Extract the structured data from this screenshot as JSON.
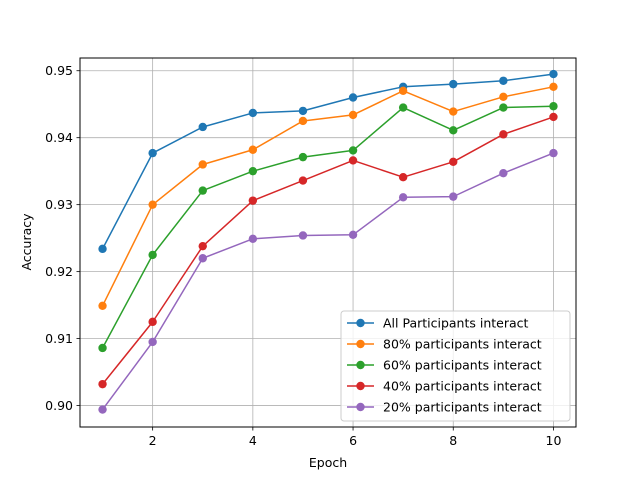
{
  "chart_data": {
    "type": "line",
    "title": "",
    "xlabel": "Epoch",
    "ylabel": "Accuracy",
    "x": [
      1,
      2,
      3,
      4,
      5,
      6,
      7,
      8,
      9,
      10
    ],
    "xlim": [
      0.55,
      10.45
    ],
    "ylim": [
      0.8968,
      0.9519
    ],
    "xticks": [
      2,
      4,
      6,
      8,
      10
    ],
    "yticks": [
      0.9,
      0.91,
      0.92,
      0.93,
      0.94,
      0.95
    ],
    "xtick_labels": [
      "2",
      "4",
      "6",
      "8",
      "10"
    ],
    "ytick_labels": [
      "0.90",
      "0.91",
      "0.92",
      "0.93",
      "0.94",
      "0.95"
    ],
    "grid": true,
    "legend_position": "lower-right",
    "series": [
      {
        "name": "All Participants interact",
        "color": "#1f77b4",
        "values": [
          0.9234,
          0.9377,
          0.9416,
          0.9437,
          0.944,
          0.946,
          0.9476,
          0.948,
          0.9485,
          0.9495
        ]
      },
      {
        "name": "80% participants interact",
        "color": "#ff7f0e",
        "values": [
          0.9149,
          0.93,
          0.936,
          0.9382,
          0.9425,
          0.9434,
          0.947,
          0.9439,
          0.9461,
          0.9476
        ]
      },
      {
        "name": "60% participants interact",
        "color": "#2ca02c",
        "values": [
          0.9086,
          0.9225,
          0.9321,
          0.935,
          0.9371,
          0.9381,
          0.9445,
          0.9411,
          0.9445,
          0.9447
        ]
      },
      {
        "name": "40% participants interact",
        "color": "#d62728",
        "values": [
          0.9032,
          0.9125,
          0.9238,
          0.9306,
          0.9336,
          0.9366,
          0.9341,
          0.9364,
          0.9405,
          0.9431
        ]
      },
      {
        "name": "20% participants interact",
        "color": "#9467bd",
        "values": [
          0.8994,
          0.9095,
          0.922,
          0.9249,
          0.9254,
          0.9255,
          0.9311,
          0.9312,
          0.9347,
          0.9377
        ]
      }
    ]
  }
}
